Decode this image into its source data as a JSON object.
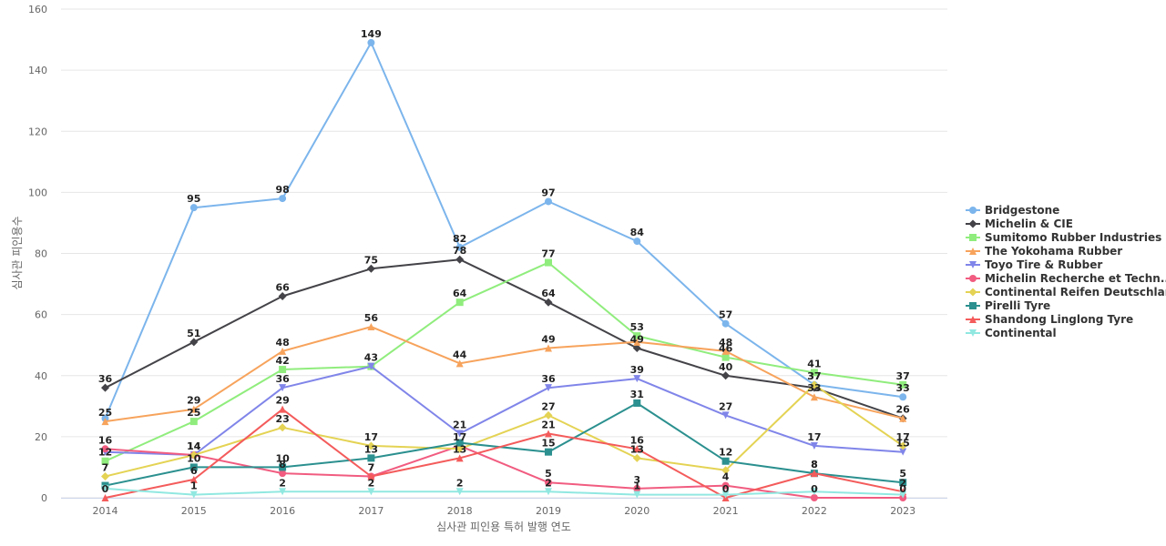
{
  "chart_data": {
    "type": "line",
    "title": "",
    "xlabel": "심사관 피인용 특허 발행 연도",
    "ylabel": "심사관 피인용수",
    "x": [
      "2014",
      "2015",
      "2016",
      "2017",
      "2018",
      "2019",
      "2020",
      "2021",
      "2022",
      "2023"
    ],
    "ylim": [
      0,
      160
    ],
    "yticks": [
      0,
      20,
      40,
      60,
      80,
      100,
      120,
      140,
      160
    ],
    "grid": true,
    "legend_position": "right",
    "series": [
      {
        "name": "Bridgestone",
        "color": "#7cb5ec",
        "marker": "circle",
        "values": [
          26,
          95,
          98,
          149,
          82,
          97,
          84,
          57,
          37,
          33
        ]
      },
      {
        "name": "Michelin & CIE",
        "color": "#434348",
        "marker": "diamond",
        "values": [
          36,
          51,
          66,
          75,
          78,
          64,
          49,
          40,
          36,
          26
        ]
      },
      {
        "name": "Sumitomo Rubber Industries",
        "color": "#90ed7d",
        "marker": "square",
        "values": [
          12,
          25,
          42,
          43,
          64,
          77,
          53,
          46,
          41,
          37
        ]
      },
      {
        "name": "The Yokohama Rubber",
        "color": "#f7a35c",
        "marker": "triangle",
        "values": [
          25,
          29,
          48,
          56,
          44,
          49,
          51,
          48,
          33,
          26
        ]
      },
      {
        "name": "Toyo Tire & Rubber",
        "color": "#8085e9",
        "marker": "triangle-down",
        "values": [
          15,
          14,
          36,
          43,
          21,
          36,
          39,
          27,
          17,
          15
        ]
      },
      {
        "name": "Michelin Recherche et Techn...",
        "color": "#f15c80",
        "marker": "circle",
        "values": [
          16,
          14,
          8,
          7,
          17,
          5,
          3,
          4,
          0,
          0
        ]
      },
      {
        "name": "Continental Reifen Deutschland",
        "color": "#e4d354",
        "marker": "diamond",
        "values": [
          7,
          14,
          23,
          17,
          16,
          27,
          13,
          9,
          37,
          17
        ]
      },
      {
        "name": "Pirelli Tyre",
        "color": "#2b908f",
        "marker": "square",
        "values": [
          4,
          10,
          10,
          13,
          18,
          15,
          31,
          12,
          8,
          5
        ]
      },
      {
        "name": "Shandong Linglong Tyre",
        "color": "#f45b5b",
        "marker": "triangle",
        "values": [
          0,
          6,
          29,
          7,
          13,
          21,
          16,
          0,
          8,
          2
        ]
      },
      {
        "name": "Continental",
        "color": "#91e8e1",
        "marker": "triangle-down",
        "values": [
          3,
          1,
          2,
          2,
          2,
          2,
          1,
          1,
          2,
          1
        ]
      }
    ],
    "data_labels": [
      {
        "series": 0,
        "points": [
          1,
          2,
          3,
          4,
          5,
          6,
          7,
          8,
          9
        ]
      },
      {
        "series": 1,
        "points": [
          0,
          1,
          2,
          3,
          4,
          5,
          6,
          7,
          9
        ]
      },
      {
        "series": 2,
        "points": [
          0,
          1,
          2,
          4,
          5,
          6,
          7,
          8,
          9
        ]
      },
      {
        "series": 3,
        "points": [
          0,
          1,
          2,
          3,
          4,
          5,
          7,
          8
        ]
      },
      {
        "series": 4,
        "points": [
          2,
          3,
          4,
          5,
          6,
          7,
          8,
          9
        ]
      },
      {
        "series": 5,
        "points": [
          0,
          1,
          2,
          3,
          4,
          5,
          6,
          7,
          8,
          9
        ]
      },
      {
        "series": 6,
        "points": [
          0,
          1,
          2,
          3,
          5,
          6,
          8,
          9
        ]
      },
      {
        "series": 7,
        "points": [
          1,
          2,
          3,
          5,
          6,
          7,
          8,
          9
        ]
      },
      {
        "series": 8,
        "points": [
          0,
          1,
          2,
          3,
          4,
          5,
          6,
          7,
          8,
          9
        ]
      },
      {
        "series": 9,
        "points": [
          1,
          2,
          3,
          4,
          5,
          6
        ]
      }
    ]
  }
}
